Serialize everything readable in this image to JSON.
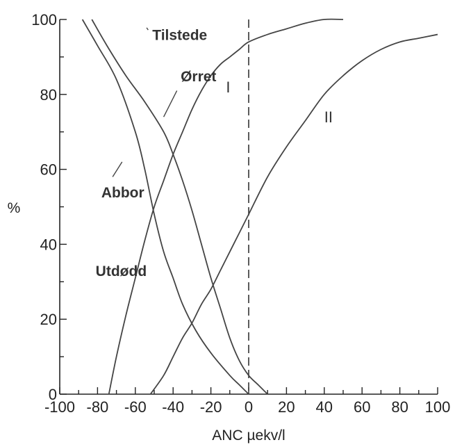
{
  "chart_data": {
    "type": "line",
    "title": "",
    "xlabel": "ANC µekv/l",
    "ylabel": "%",
    "xlim": [
      -100,
      100
    ],
    "ylim": [
      0,
      100
    ],
    "xticks": [
      -100,
      -80,
      -60,
      -40,
      -20,
      0,
      20,
      40,
      60,
      80,
      100
    ],
    "xtick_labels": [
      "-100",
      "-80",
      "-60",
      "-40",
      "-20",
      "0",
      "20",
      "40",
      "60",
      "80",
      "100"
    ],
    "yticks": [
      0,
      20,
      40,
      60,
      80,
      100
    ],
    "ytick_labels": [
      "0",
      "20",
      "40",
      "60",
      "80",
      "100"
    ],
    "grid": false,
    "reference_lines": [
      {
        "axis": "x",
        "value": 0,
        "style": "dashed"
      }
    ],
    "series": [
      {
        "name": "Abbor",
        "points": [
          [
            -88,
            100
          ],
          [
            -80,
            93
          ],
          [
            -70,
            84
          ],
          [
            -60,
            70
          ],
          [
            -55,
            60
          ],
          [
            -50,
            48
          ],
          [
            -45,
            38
          ],
          [
            -40,
            31
          ],
          [
            -35,
            24
          ],
          [
            -28,
            17
          ],
          [
            -20,
            11
          ],
          [
            -10,
            5
          ],
          [
            -5,
            2.5
          ],
          [
            0,
            0
          ]
        ]
      },
      {
        "name": "Ørret",
        "points": [
          [
            -83,
            100
          ],
          [
            -75,
            93
          ],
          [
            -65,
            85
          ],
          [
            -55,
            78
          ],
          [
            -45,
            70
          ],
          [
            -40,
            64
          ],
          [
            -35,
            57
          ],
          [
            -30,
            49
          ],
          [
            -25,
            40
          ],
          [
            -20,
            31
          ],
          [
            -15,
            23
          ],
          [
            -10,
            15
          ],
          [
            -5,
            9
          ],
          [
            0,
            5
          ],
          [
            5,
            2.5
          ],
          [
            10,
            0
          ]
        ]
      },
      {
        "name": "I",
        "points": [
          [
            -74,
            0
          ],
          [
            -70,
            10
          ],
          [
            -65,
            21
          ],
          [
            -60,
            31
          ],
          [
            -55,
            41
          ],
          [
            -50,
            50
          ],
          [
            -45,
            57
          ],
          [
            -40,
            64
          ],
          [
            -35,
            70
          ],
          [
            -30,
            76
          ],
          [
            -25,
            81
          ],
          [
            -20,
            85
          ],
          [
            -15,
            88
          ],
          [
            -10,
            90
          ],
          [
            -5,
            92
          ],
          [
            0,
            94
          ],
          [
            10,
            96
          ],
          [
            20,
            97.5
          ],
          [
            30,
            99
          ],
          [
            40,
            100
          ],
          [
            50,
            100
          ]
        ]
      },
      {
        "name": "II",
        "points": [
          [
            -52,
            0
          ],
          [
            -45,
            5
          ],
          [
            -40,
            10
          ],
          [
            -35,
            15
          ],
          [
            -30,
            19
          ],
          [
            -25,
            24
          ],
          [
            -20,
            28
          ],
          [
            -15,
            33
          ],
          [
            -10,
            38
          ],
          [
            -5,
            43
          ],
          [
            0,
            48
          ],
          [
            10,
            58
          ],
          [
            20,
            66
          ],
          [
            30,
            73
          ],
          [
            40,
            80
          ],
          [
            50,
            85
          ],
          [
            60,
            89
          ],
          [
            70,
            92
          ],
          [
            80,
            94
          ],
          [
            90,
            95
          ],
          [
            100,
            96
          ]
        ]
      }
    ],
    "annotations": [
      {
        "text": "Tilstede",
        "x": -51,
        "y": 96
      },
      {
        "text": "Ørret",
        "x": -36,
        "y": 85
      },
      {
        "text": "Abbor",
        "x": -78,
        "y": 54
      },
      {
        "text": "Utdødd",
        "x": -81,
        "y": 33
      },
      {
        "text": "I",
        "x": -12,
        "y": 82
      },
      {
        "text": "II",
        "x": 40,
        "y": 74
      }
    ]
  }
}
